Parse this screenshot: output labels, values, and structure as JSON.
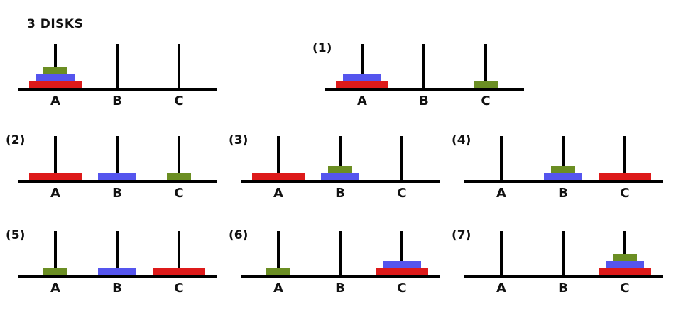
{
  "title": "3 DISKS",
  "colors": {
    "small": "#6b8e23",
    "medium": "#5555ee",
    "large": "#dd1a1a",
    "line": "#000000"
  },
  "peg_labels": [
    "A",
    "B",
    "C"
  ],
  "states": [
    {
      "label": "",
      "pegs": [
        [
          "large",
          "medium",
          "small"
        ],
        [],
        []
      ]
    },
    {
      "label": "(1)",
      "pegs": [
        [
          "large",
          "medium"
        ],
        [],
        [
          "small"
        ]
      ]
    },
    {
      "label": "(2)",
      "pegs": [
        [
          "large"
        ],
        [
          "medium"
        ],
        [
          "small"
        ]
      ]
    },
    {
      "label": "(3)",
      "pegs": [
        [
          "large"
        ],
        [
          "medium",
          "small"
        ],
        []
      ]
    },
    {
      "label": "(4)",
      "pegs": [
        [],
        [
          "medium",
          "small"
        ],
        [
          "large"
        ]
      ]
    },
    {
      "label": "(5)",
      "pegs": [
        [
          "small"
        ],
        [
          "medium"
        ],
        [
          "large"
        ]
      ]
    },
    {
      "label": "(6)",
      "pegs": [
        [
          "small"
        ],
        [],
        [
          "large",
          "medium"
        ]
      ]
    },
    {
      "label": "(7)",
      "pegs": [
        [],
        [],
        [
          "large",
          "medium",
          "small"
        ]
      ]
    }
  ]
}
